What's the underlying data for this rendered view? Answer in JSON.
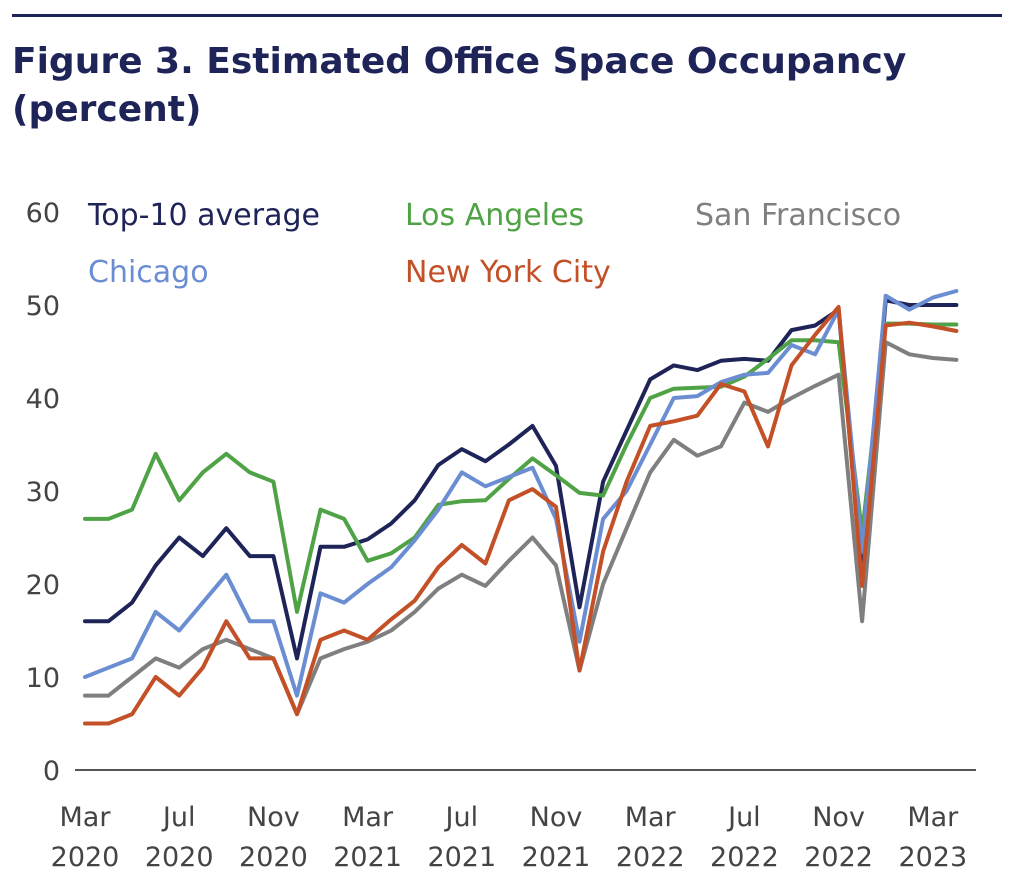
{
  "title": "Figure 3.  Estimated Office Space Occupancy (percent)",
  "chart_data": {
    "type": "line",
    "title": "Figure 3.  Estimated Office Space Occupancy (percent)",
    "xlabel": "",
    "ylabel": "",
    "ylim": [
      0,
      60
    ],
    "yticks": [
      "0",
      "10",
      "20",
      "30",
      "40",
      "50",
      "60"
    ],
    "grid": false,
    "legend_position": "top-left, inside plot",
    "x": [
      "Mar 2020",
      "Apr 2020",
      "May 2020",
      "Jun 2020",
      "Jul 2020",
      "Aug 2020",
      "Sep 2020",
      "Oct 2020",
      "Nov 2020",
      "Dec 2020",
      "Jan 2021",
      "Feb 2021",
      "Mar 2021",
      "Apr 2021",
      "May 2021",
      "Jun 2021",
      "Jul 2021",
      "Aug 2021",
      "Sep 2021",
      "Oct 2021",
      "Nov 2021",
      "Dec 2021",
      "Jan 2022",
      "Feb 2022",
      "Mar 2022",
      "Apr 2022",
      "May 2022",
      "Jun 2022",
      "Jul 2022",
      "Aug 2022",
      "Sep 2022",
      "Oct 2022",
      "Nov 2022",
      "Dec 2022",
      "Jan 2023",
      "Feb 2023",
      "Mar 2023",
      "Apr 2023"
    ],
    "x_tick_labels": [
      {
        "index": 0,
        "month": "Mar",
        "year": "2020"
      },
      {
        "index": 4,
        "month": "Jul",
        "year": "2020"
      },
      {
        "index": 8,
        "month": "Nov",
        "year": "2020"
      },
      {
        "index": 12,
        "month": "Mar",
        "year": "2021"
      },
      {
        "index": 16,
        "month": "Jul",
        "year": "2021"
      },
      {
        "index": 20,
        "month": "Nov",
        "year": "2021"
      },
      {
        "index": 24,
        "month": "Mar",
        "year": "2022"
      },
      {
        "index": 28,
        "month": "Jul",
        "year": "2022"
      },
      {
        "index": 32,
        "month": "Nov",
        "year": "2022"
      },
      {
        "index": 36,
        "month": "Mar",
        "year": "2023"
      }
    ],
    "series": [
      {
        "name": "Top-10 average",
        "color": "#1f2458",
        "values": [
          16,
          16,
          18,
          22,
          25,
          23,
          26,
          23,
          23,
          12,
          24,
          24,
          24.8,
          26.5,
          29,
          32.8,
          34.5,
          33.2,
          35,
          37,
          32.7,
          17.5,
          31,
          36.5,
          42,
          43.5,
          43,
          44,
          44.2,
          44,
          47.3,
          47.8,
          49.5,
          20.5,
          50.5,
          50,
          50,
          50
        ]
      },
      {
        "name": "Los Angeles",
        "color": "#4fa346",
        "values": [
          27,
          27,
          28,
          34,
          29,
          32,
          34,
          32,
          31,
          17,
          28,
          27,
          22.5,
          23.3,
          25,
          28.5,
          28.9,
          29,
          31.3,
          33.5,
          31.7,
          29.8,
          29.5,
          35,
          40,
          41,
          41.1,
          41.2,
          42.3,
          44.2,
          46.2,
          46.2,
          46,
          25.5,
          48,
          48,
          47.9,
          47.9
        ]
      },
      {
        "name": "San Francisco",
        "color": "#7f7f7f",
        "values": [
          8,
          8,
          10,
          12,
          11,
          13,
          14,
          13,
          12,
          6,
          12,
          13,
          13.8,
          15,
          17,
          19.5,
          21,
          19.8,
          22.5,
          25,
          22,
          10.7,
          20,
          26,
          32,
          35.5,
          33.8,
          34.8,
          39.5,
          38.5,
          40,
          41.3,
          42.5,
          16,
          46,
          44.7,
          44.3,
          44.1
        ]
      },
      {
        "name": "Chicago",
        "color": "#6b8ed2",
        "values": [
          10,
          11,
          12,
          17,
          15,
          18,
          21,
          16,
          16,
          8,
          19,
          18,
          20,
          21.8,
          24.7,
          28,
          32,
          30.5,
          31.5,
          32.5,
          27,
          13.8,
          27,
          30,
          35,
          40,
          40.2,
          41.7,
          42.5,
          42.7,
          45.7,
          44.7,
          49.5,
          23.5,
          51,
          49.5,
          50.8,
          51.5
        ]
      },
      {
        "name": "New York City",
        "color": "#c35027",
        "values": [
          5,
          5,
          6,
          10,
          8,
          11,
          16,
          12,
          12,
          6,
          14,
          15,
          14,
          16.2,
          18.2,
          21.8,
          24.2,
          22.2,
          29,
          30.2,
          28.3,
          10.7,
          23.5,
          31,
          37,
          37.5,
          38.1,
          41.5,
          40.7,
          34.8,
          43.5,
          46.8,
          49.8,
          19.8,
          47.8,
          48.1,
          47.7,
          47.2
        ]
      }
    ]
  }
}
